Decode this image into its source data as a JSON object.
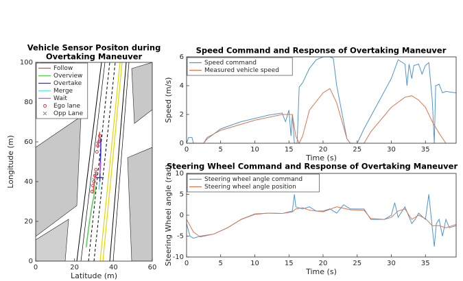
{
  "chart_data": [
    {
      "type": "scatter",
      "title": [
        "Vehicle Sensor Positon during",
        "Overtaking Maneuver"
      ],
      "xlabel": "Latitude (m)",
      "ylabel": "Longitude (m)",
      "xlim": [
        0,
        60
      ],
      "xticks": [
        0,
        20,
        40,
        60
      ],
      "ylim": [
        0,
        100
      ],
      "yticks": [
        0,
        20,
        40,
        60,
        80,
        100
      ],
      "legend": "top-left",
      "series": [
        {
          "name": "Follow",
          "color": "#e8403a",
          "style": "line",
          "x": [
            29.5,
            30,
            30.5,
            31,
            null,
            32,
            32.5,
            33
          ],
          "values": [
            34,
            38,
            42,
            45,
            null,
            57,
            61,
            65
          ]
        },
        {
          "name": "Overview",
          "color": "#4cd14c",
          "style": "line",
          "x": [
            26,
            27,
            28,
            29,
            30,
            31
          ],
          "values": [
            7,
            15,
            22,
            28,
            33,
            38
          ]
        },
        {
          "name": "Overtake",
          "color": "#2a2ae0",
          "style": "line",
          "x": [
            33.5,
            33.5,
            33.2,
            33,
            null,
            31,
            35
          ],
          "values": [
            62,
            55,
            48,
            40,
            null,
            42,
            42
          ]
        },
        {
          "name": "Merge",
          "color": "#5fe0e8",
          "style": "line",
          "x": [
            32.5,
            33
          ],
          "values": [
            36,
            40
          ]
        },
        {
          "name": "Wait",
          "color": "#e040e0",
          "style": "line",
          "x": [
            33,
            33.5
          ],
          "values": [
            44,
            50
          ]
        },
        {
          "name": "Ego lane",
          "color": "#e0303a",
          "style": "marker",
          "marker": "o",
          "x": [
            29,
            29.5,
            30,
            30.5,
            31,
            31.5,
            32,
            32.5,
            33
          ],
          "values": [
            35,
            38,
            40,
            43,
            46,
            55,
            58,
            60,
            63
          ]
        },
        {
          "name": "Opp Lane",
          "color": "#888888",
          "style": "marker",
          "marker": "x",
          "x": [
            30,
            31,
            32
          ],
          "values": [
            41,
            44,
            59
          ]
        }
      ]
    },
    {
      "type": "line",
      "title": "Speed Command and Response of Overtaking Maneuver",
      "xlabel": "Time (s)",
      "ylabel": "Speed (m/s)",
      "xlim": [
        0,
        39.5
      ],
      "xticks": [
        0,
        5,
        10,
        15,
        20,
        25,
        30,
        35
      ],
      "ylim": [
        0,
        6
      ],
      "yticks": [
        0,
        2,
        4,
        6
      ],
      "legend": "top-left",
      "series": [
        {
          "name": "Speed command",
          "color": "#4d95cc",
          "style": "line",
          "x": [
            0,
            0.3,
            0.8,
            1,
            2.5,
            3,
            5,
            8,
            12,
            14,
            14.5,
            15,
            15.3,
            15.5,
            15.8,
            16.2,
            16.5,
            17,
            18,
            19,
            20,
            21,
            21.5,
            22,
            23.5,
            24,
            25,
            26,
            30,
            31,
            32,
            32.3,
            32.6,
            33,
            33.3,
            34,
            34.5,
            35,
            35.5,
            36,
            36.3,
            36.5,
            37,
            37.5,
            38,
            39.5
          ],
          "values": [
            0,
            0.4,
            0.4,
            0,
            0,
            0.3,
            1.0,
            1.5,
            1.95,
            2.1,
            1.5,
            2.3,
            0.5,
            2.0,
            0,
            0,
            3.9,
            4.2,
            5.2,
            5.8,
            6,
            6,
            5.9,
            4,
            0.3,
            0,
            0,
            1,
            4.5,
            5.8,
            5.5,
            4,
            5.5,
            4.5,
            5.4,
            5.5,
            4.8,
            5.4,
            5.6,
            3,
            0,
            4,
            4.1,
            3.5,
            3.6,
            3.5
          ]
        },
        {
          "name": "Measured vehicle speed",
          "color": "#e0734f",
          "style": "line",
          "x": [
            0,
            2.5,
            3,
            5,
            10,
            14,
            15.5,
            16,
            16.5,
            17,
            18,
            20,
            21,
            22,
            23.5,
            24,
            26,
            27,
            30,
            32,
            33,
            34,
            35,
            36,
            37,
            38
          ],
          "values": [
            0,
            0,
            0.4,
            0.9,
            1.6,
            2.0,
            2.0,
            0.5,
            0,
            0.5,
            2.3,
            3.5,
            3.8,
            2.8,
            0.3,
            0,
            0,
            0.8,
            2.5,
            3.2,
            3.3,
            3.0,
            2.5,
            1.5,
            0.7,
            0
          ]
        }
      ]
    },
    {
      "type": "line",
      "title": "Steering Wheel Command and Response of Overtaking Maneuver",
      "xlabel": "Time (s)",
      "ylabel": "Steering Wheel angle (rad)",
      "xlim": [
        0,
        39.5
      ],
      "xticks": [
        0,
        5,
        10,
        15,
        20,
        25,
        30,
        35
      ],
      "ylim": [
        -10,
        10
      ],
      "yticks": [
        -10,
        -5,
        0,
        5,
        10
      ],
      "legend": "top-left",
      "series": [
        {
          "name": "Steering wheel angle command",
          "color": "#4d95cc",
          "style": "line",
          "x": [
            0,
            0.5,
            1,
            2,
            4,
            6,
            8,
            10,
            12,
            14,
            15.5,
            15.8,
            16,
            17,
            18,
            19,
            20,
            21,
            22,
            23,
            24,
            26,
            27,
            29,
            30,
            30.5,
            31,
            32,
            33,
            33.5,
            34,
            35,
            35.5,
            36,
            36.3,
            36.6,
            37,
            37.5,
            38,
            38.5,
            39.5
          ],
          "values": [
            -2,
            -5,
            -5.5,
            -5,
            -4.5,
            -3,
            -1,
            0.3,
            0.5,
            0.4,
            1,
            5,
            2,
            1.5,
            2,
            1,
            1,
            1.5,
            0.5,
            2.5,
            1.5,
            1.5,
            -1,
            -1,
            0,
            3,
            -0.5,
            2,
            -2,
            -1,
            0.5,
            -1,
            5,
            -3,
            -7.5,
            -2,
            -1,
            -5,
            -1,
            -3,
            -2.5
          ]
        },
        {
          "name": "Steering wheel angle position",
          "color": "#e0734f",
          "style": "line",
          "x": [
            0,
            1,
            2,
            4,
            6,
            8,
            10,
            12,
            14,
            15.5,
            16,
            17,
            18,
            20,
            22,
            24,
            26,
            27,
            29,
            30,
            31,
            32,
            33,
            34,
            35,
            36,
            37,
            38,
            39.5
          ],
          "values": [
            -1,
            -4,
            -5.2,
            -4.5,
            -3,
            -1,
            0.2,
            0.5,
            0.4,
            0.8,
            1.5,
            1.8,
            1.2,
            0.8,
            2,
            1.3,
            1.2,
            -0.8,
            -1,
            -0.5,
            1,
            1.5,
            -1,
            0,
            -0.8,
            -2.5,
            -2.5,
            -3,
            -2.2
          ]
        }
      ]
    }
  ]
}
